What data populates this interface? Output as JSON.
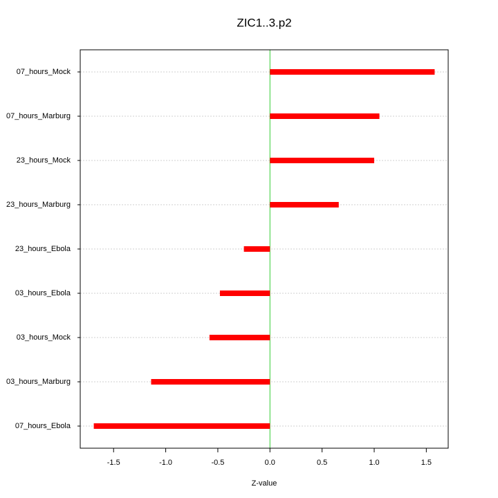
{
  "chart_data": {
    "type": "bar",
    "orientation": "horizontal",
    "title": "ZIC1..3.p2",
    "x_label": "Z-value",
    "categories": [
      "07_hours_Mock",
      "07_hours_Marburg",
      "23_hours_Mock",
      "23_hours_Marburg",
      "23_hours_Ebola",
      "03_hours_Ebola",
      "03_hours_Mock",
      "03_hours_Marburg",
      "07_hours_Ebola"
    ],
    "values": [
      1.58,
      1.05,
      1.0,
      0.66,
      -0.25,
      -0.48,
      -0.58,
      -1.14,
      -1.69
    ],
    "color": "#ff0000",
    "xlim": [
      -1.82,
      1.71
    ],
    "xticks": [
      -1.5,
      {
        "value": -1.0,
        "label": "-1.0"
      },
      -0.5,
      {
        "value": 0.0,
        "label": "0.0"
      },
      0.5,
      {
        "value": 1.0,
        "label": "1.0"
      },
      1.5
    ],
    "grid": true
  }
}
